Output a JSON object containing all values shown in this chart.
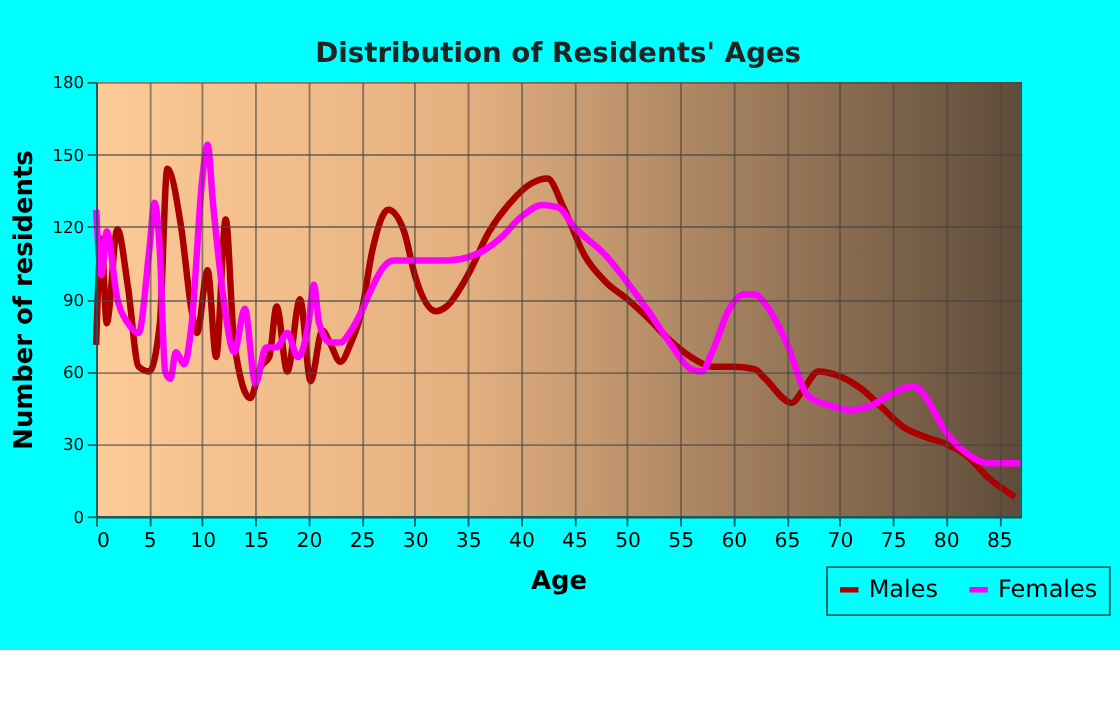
{
  "chart_data": {
    "type": "line",
    "title": "Distribution of Residents' Ages",
    "xlabel": "Age",
    "ylabel": "Number of residents",
    "xlim": [
      0,
      87
    ],
    "xticks": [
      0,
      5,
      10,
      15,
      20,
      25,
      30,
      35,
      40,
      45,
      50,
      55,
      60,
      65,
      70,
      75,
      80,
      85
    ],
    "ylim": [
      0,
      180
    ],
    "yticks": [
      0,
      30,
      60,
      90,
      120,
      150,
      180
    ],
    "grid": true,
    "legend": "bottom right",
    "marker": "none",
    "line_style": "solid",
    "series": [
      {
        "name": "Males",
        "color": "#aa0000",
        "x": [
          0,
          0.5,
          1,
          2,
          3,
          4,
          5,
          6,
          6.7,
          8,
          9,
          9.5,
          10.5,
          11.3,
          12.2,
          13,
          14.5,
          15.5,
          16.3,
          17,
          18,
          19.2,
          20.2,
          21.3,
          22,
          23,
          24,
          25,
          26,
          27.5,
          29,
          30,
          32,
          33,
          35,
          37,
          39,
          41,
          42.5,
          44,
          46,
          48,
          50,
          52,
          54,
          56,
          58,
          60,
          62,
          63,
          65.5,
          66.5,
          68,
          70,
          72,
          74,
          76,
          78,
          80,
          82,
          84,
          86.5
        ],
        "values": [
          71,
          115,
          80,
          119,
          95,
          62,
          60,
          80,
          144,
          120,
          85,
          76,
          102,
          66,
          123,
          72,
          49,
          62,
          66,
          87,
          60,
          90,
          56,
          77,
          72,
          64,
          72,
          85,
          110,
          127,
          118,
          100,
          85,
          87,
          100,
          118,
          130,
          138,
          140,
          128,
          108,
          97,
          90,
          82,
          73,
          66,
          62,
          62,
          61,
          57,
          47,
          52,
          60,
          58,
          53,
          45,
          37,
          33,
          30,
          25,
          16,
          8
        ]
      },
      {
        "name": "Females",
        "color": "#ff00ff",
        "x": [
          0,
          0.5,
          1,
          2,
          3,
          4,
          5,
          5.5,
          6,
          6.5,
          7,
          7.5,
          8.3,
          9,
          10,
          10.5,
          11,
          12,
          13,
          14,
          15,
          16,
          17,
          18,
          19,
          20,
          20.5,
          21,
          22,
          23,
          24,
          25,
          26,
          27,
          28,
          30,
          33,
          36,
          38,
          40,
          42,
          43.5,
          45,
          48,
          50,
          52,
          54,
          56,
          57,
          58,
          59.5,
          61,
          62,
          63,
          65,
          67,
          69,
          71,
          73,
          75,
          77,
          78,
          80,
          82,
          84,
          87
        ],
        "values": [
          127,
          100,
          118,
          90,
          80,
          76,
          110,
          130,
          110,
          60,
          57,
          68,
          63,
          80,
          140,
          154,
          130,
          90,
          68,
          86,
          55,
          70,
          70,
          76,
          66,
          80,
          96,
          80,
          72,
          72,
          77,
          85,
          95,
          103,
          106,
          106,
          106,
          109,
          115,
          124,
          129,
          128,
          120,
          108,
          97,
          85,
          72,
          61,
          60,
          68,
          85,
          92,
          92,
          88,
          72,
          50,
          46,
          44,
          46,
          51,
          54,
          50,
          35,
          26,
          22,
          22
        ]
      }
    ]
  }
}
